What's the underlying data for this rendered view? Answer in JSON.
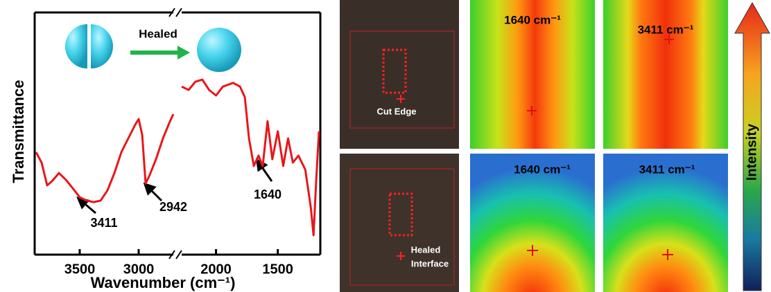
{
  "chart_data": {
    "type": "line",
    "x_label": "Wavenumber (cm⁻¹)",
    "y_label": "Transmittance",
    "color": "#e8161b",
    "x": [
      3870,
      3823,
      3776,
      3735,
      3676,
      3617,
      3559,
      3500,
      3441,
      3382,
      3323,
      3264,
      3206,
      3147,
      3088,
      3029,
      3000,
      2970,
      2941,
      2912,
      2853,
      2794,
      2735,
      2706,
      null,
      2278,
      2222,
      2167,
      2111,
      2056,
      2000,
      1944,
      1861,
      1806,
      1767,
      1733,
      1694,
      1656,
      1622,
      1583,
      1544,
      1500,
      1456,
      1417,
      1378,
      1333,
      1278,
      1233,
      1211,
      1189,
      1167
    ],
    "values": [
      42.3,
      38,
      28.6,
      30.3,
      33.7,
      30.9,
      27.4,
      23.7,
      22.3,
      21.7,
      22.3,
      26.6,
      33.7,
      42.3,
      48,
      53.7,
      56,
      49.4,
      29.4,
      32.3,
      39.4,
      48,
      55,
      58,
      null,
      69.4,
      68,
      71.4,
      72.3,
      68,
      65.7,
      69.4,
      70.9,
      69.4,
      65.1,
      48,
      36.6,
      40.9,
      36.6,
      55.1,
      39.4,
      50.9,
      36.6,
      48,
      38,
      40.9,
      35.1,
      19.4,
      8,
      30.9,
      50.9
    ],
    "xlim": [
      3882,
      1156
    ],
    "xbreak": [
      2706,
      2278
    ],
    "xticks": [
      3500,
      3000,
      2000,
      1500
    ],
    "ylim": [
      0,
      100
    ],
    "annotations": [
      "3411",
      "2942",
      "1640"
    ],
    "healed_label": "Healed"
  },
  "panels": {
    "cut_edge": "Cut Edge",
    "healed_interface": [
      "Healed",
      "Interface"
    ],
    "maps": [
      "1640 cm⁻¹",
      "3411 cm⁻¹",
      "1640 cm⁻¹",
      "3411 cm⁻¹"
    ],
    "colorbar_label": "Intensity"
  }
}
